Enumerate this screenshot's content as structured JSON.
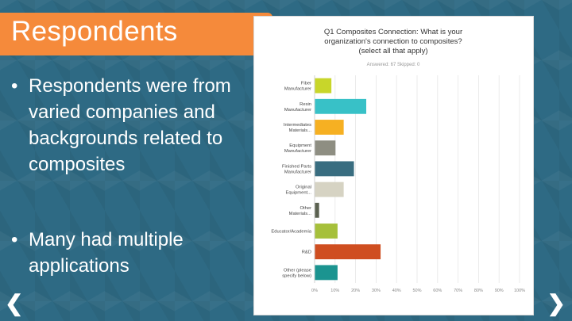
{
  "slide": {
    "title": "Respondents",
    "bullets": [
      "Respondents were from varied companies and backgrounds related to composites",
      "Many had multiple applications"
    ],
    "bullet_char": "•",
    "nav": {
      "prev": "❮",
      "next": "❯"
    }
  },
  "chart_data": {
    "type": "bar",
    "orientation": "horizontal",
    "title": "Q1 Composites Connection: What is your organization's connection to composites? (select all that apply)",
    "subtitle": "Answered: 67    Skipped: 0",
    "categories": [
      "Fiber Manufacturer",
      "Resin Manufacturer",
      "Intermediates Materials...",
      "Equipment Manufacturer",
      "Finished Parts Manufacturer",
      "Original Equipment...",
      "Other Materials...",
      "Educator/Academia",
      "R&D",
      "Other (please specify below)"
    ],
    "values": [
      8,
      25,
      14,
      10,
      19,
      14,
      2,
      11,
      32,
      11
    ],
    "colors": [
      "#c8d62a",
      "#38c1c7",
      "#f6b022",
      "#8e8e82",
      "#396d80",
      "#d6d3c3",
      "#5b6150",
      "#a6c03b",
      "#cf4e20",
      "#1b9490"
    ],
    "xlim": [
      0,
      100
    ],
    "x_ticks": [
      "0%",
      "10%",
      "20%",
      "30%",
      "40%",
      "50%",
      "60%",
      "70%",
      "80%",
      "90%",
      "100%"
    ],
    "grid": true,
    "legend": "none"
  }
}
